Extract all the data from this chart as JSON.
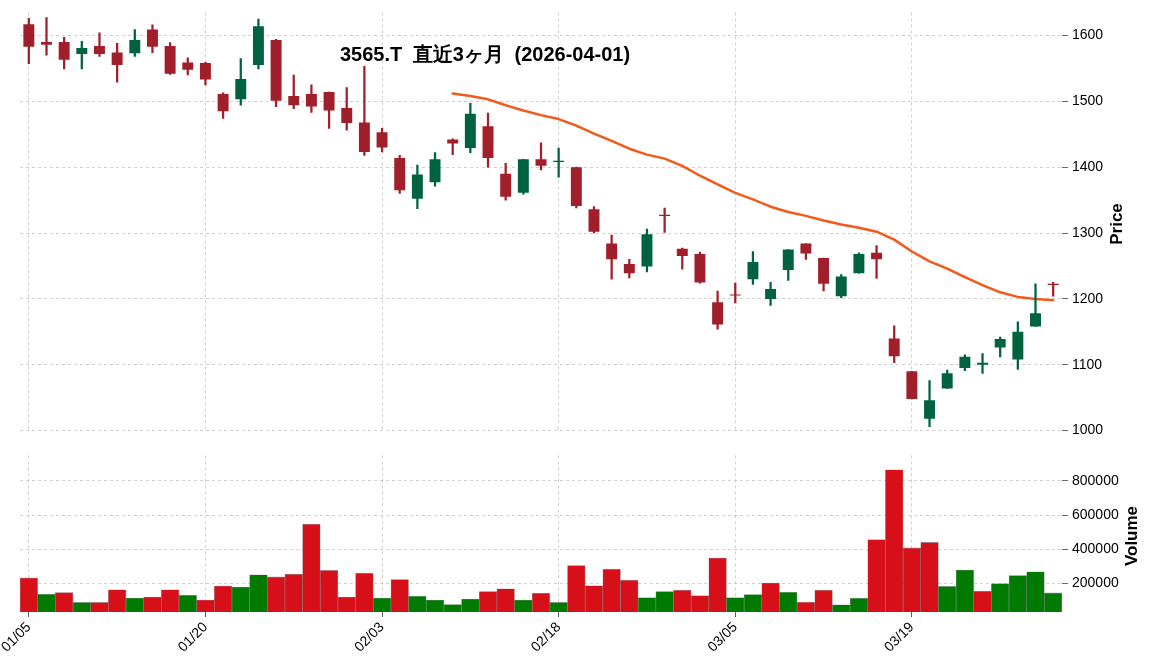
{
  "chart_data": [
    {
      "type": "candlestick",
      "title": "3565.T 直近3ヶ月 (2026-04-01)",
      "ylabel": "Price",
      "categories": [
        null,
        null,
        null,
        null,
        null,
        null,
        null,
        null,
        null,
        null,
        null,
        null,
        null,
        null,
        null,
        null,
        null,
        null,
        null,
        null,
        null,
        null,
        null,
        null,
        null,
        null,
        null,
        null,
        null,
        null,
        null,
        null,
        null,
        null,
        null,
        null,
        null,
        null,
        null,
        null,
        null,
        null,
        null,
        null,
        null,
        null,
        null,
        null,
        null,
        null,
        null,
        null,
        null,
        null,
        null,
        null,
        null,
        null,
        null
      ],
      "ylim": [
        1000,
        1635
      ],
      "yticks": [
        1000,
        1100,
        1200,
        1300,
        1400,
        1500,
        1600
      ],
      "grid": true,
      "tick_labels": "y",
      "series": [
        {
          "ohlc": [
            [
              1617,
              1626,
              1557,
              1583
            ],
            [
              1590,
              1627,
              1570,
              1586
            ],
            [
              1590,
              1597,
              1549,
              1563
            ],
            [
              1572,
              1591,
              1549,
              1581
            ],
            [
              1584,
              1604,
              1568,
              1572
            ],
            [
              1574,
              1588,
              1529,
              1555
            ],
            [
              1573,
              1609,
              1568,
              1593
            ],
            [
              1609,
              1616,
              1574,
              1583
            ],
            [
              1584,
              1589,
              1541,
              1542
            ],
            [
              1559,
              1566,
              1540,
              1548
            ],
            [
              1558,
              1559,
              1525,
              1533
            ],
            [
              1511,
              1513,
              1474,
              1485
            ],
            [
              1503,
              1565,
              1494,
              1534
            ],
            [
              1555,
              1625,
              1549,
              1614
            ],
            [
              1593,
              1594,
              1492,
              1501
            ],
            [
              1508,
              1540,
              1489,
              1494
            ],
            [
              1511,
              1525,
              1483,
              1492
            ],
            [
              1514,
              1514,
              1459,
              1486
            ],
            [
              1490,
              1521,
              1456,
              1467
            ],
            [
              1468,
              1553,
              1418,
              1423
            ],
            [
              1453,
              1459,
              1423,
              1430
            ],
            [
              1414,
              1418,
              1360,
              1365
            ],
            [
              1352,
              1403,
              1337,
              1389
            ],
            [
              1377,
              1422,
              1371,
              1412
            ],
            [
              1442,
              1443,
              1419,
              1436
            ],
            [
              1429,
              1497,
              1422,
              1481
            ],
            [
              1462,
              1482,
              1400,
              1414
            ],
            [
              1390,
              1406,
              1350,
              1355
            ],
            [
              1361,
              1412,
              1359,
              1412
            ],
            [
              1412,
              1437,
              1396,
              1402
            ],
            [
              1408,
              1429,
              1385,
              1409
            ],
            [
              1400,
              1400,
              1338,
              1341
            ],
            [
              1336,
              1340,
              1300,
              1302
            ],
            [
              1284,
              1297,
              1230,
              1260
            ],
            [
              1253,
              1260,
              1232,
              1239
            ],
            [
              1249,
              1306,
              1241,
              1298
            ],
            [
              1327,
              1338,
              1301,
              1326
            ],
            [
              1276,
              1277,
              1245,
              1265
            ],
            [
              1268,
              1271,
              1224,
              1225
            ],
            [
              1195,
              1212,
              1154,
              1161
            ],
            [
              1206,
              1224,
              1194,
              1205
            ],
            [
              1230,
              1272,
              1222,
              1256
            ],
            [
              1200,
              1225,
              1190,
              1215
            ],
            [
              1244,
              1275,
              1228,
              1275
            ],
            [
              1284,
              1284,
              1260,
              1269
            ],
            [
              1262,
              1262,
              1212,
              1223
            ],
            [
              1204,
              1237,
              1202,
              1234
            ],
            [
              1239,
              1270,
              1239,
              1268
            ],
            [
              1270,
              1281,
              1231,
              1260
            ],
            [
              1140,
              1159,
              1103,
              1113
            ],
            [
              1090,
              1090,
              1048,
              1048
            ],
            [
              1018,
              1076,
              1006,
              1046
            ],
            [
              1064,
              1092,
              1064,
              1087
            ],
            [
              1095,
              1115,
              1091,
              1112
            ],
            [
              1100,
              1117,
              1087,
              1103
            ],
            [
              1126,
              1142,
              1112,
              1139
            ],
            [
              1108,
              1165,
              1093,
              1150
            ],
            [
              1158,
              1223,
              1158,
              1178
            ],
            [
              1222,
              1225,
              1204,
              1221
            ]
          ],
          "colors": [
            "#a11f2a",
            "#a11f2a",
            "#a11f2a",
            "#006340",
            "#a11f2a",
            "#a11f2a",
            "#006340",
            "#a11f2a",
            "#a11f2a",
            "#a11f2a",
            "#a11f2a",
            "#a11f2a",
            "#006340",
            "#006340",
            "#a11f2a",
            "#a11f2a",
            "#a11f2a",
            "#a11f2a",
            "#a11f2a",
            "#a11f2a",
            "#a11f2a",
            "#a11f2a",
            "#006340",
            "#006340",
            "#a11f2a",
            "#006340",
            "#a11f2a",
            "#a11f2a",
            "#006340",
            "#a11f2a",
            "#006340",
            "#a11f2a",
            "#a11f2a",
            "#a11f2a",
            "#a11f2a",
            "#006340",
            "#a11f2a",
            "#a11f2a",
            "#a11f2a",
            "#a11f2a",
            "#a11f2a",
            "#006340",
            "#006340",
            "#006340",
            "#a11f2a",
            "#a11f2a",
            "#006340",
            "#006340",
            "#a11f2a",
            "#a11f2a",
            "#a11f2a",
            "#006340",
            "#006340",
            "#006340",
            "#006340",
            "#006340",
            "#006340",
            "#006340",
            "#a11f2a"
          ]
        },
        {
          "type": "line",
          "color": "#f2591a",
          "values": [
            null,
            null,
            null,
            null,
            null,
            null,
            null,
            null,
            null,
            null,
            null,
            null,
            null,
            null,
            null,
            null,
            null,
            null,
            null,
            null,
            null,
            null,
            null,
            null,
            1512,
            1508,
            1503,
            1494,
            1486,
            1479,
            1473,
            1463,
            1451,
            1440,
            1428,
            1419,
            1413,
            1402,
            1387,
            1374,
            1361,
            1351,
            1340,
            1332,
            1326,
            1319,
            1313,
            1308,
            1302,
            1290,
            1272,
            1257,
            1246,
            1233,
            1221,
            1210,
            1203,
            1200,
            1198
          ]
        }
      ]
    },
    {
      "type": "bar",
      "ylabel": "Volume",
      "categories": [
        "01/05",
        null,
        null,
        null,
        null,
        null,
        null,
        null,
        null,
        null,
        "01/20",
        null,
        null,
        null,
        null,
        null,
        null,
        null,
        null,
        null,
        "02/03",
        null,
        null,
        null,
        null,
        null,
        null,
        null,
        null,
        null,
        "02/18",
        null,
        null,
        null,
        null,
        null,
        null,
        null,
        null,
        null,
        "03/05",
        null,
        null,
        null,
        null,
        null,
        null,
        null,
        null,
        null,
        "03/19",
        null,
        null,
        null,
        null,
        null,
        null,
        null,
        null
      ],
      "values": [
        232000,
        136000,
        146000,
        88000,
        88000,
        162000,
        114000,
        120000,
        162000,
        130000,
        102000,
        184000,
        178000,
        250000,
        238000,
        254000,
        546000,
        276000,
        120000,
        260000,
        114000,
        222000,
        124000,
        102000,
        76000,
        108000,
        152000,
        168000,
        102000,
        142000,
        88000,
        304000,
        186000,
        282000,
        218000,
        116000,
        152000,
        160000,
        128000,
        348000,
        116000,
        134000,
        202000,
        148000,
        90000,
        160000,
        74000,
        112000,
        456000,
        866000,
        408000,
        440000,
        182000,
        278000,
        154000,
        198000,
        246000,
        268000,
        144000
      ],
      "colors": [
        "#d60f19",
        "#007a00",
        "#d60f19",
        "#007a00",
        "#d60f19",
        "#d60f19",
        "#007a00",
        "#d60f19",
        "#d60f19",
        "#007a00",
        "#d60f19",
        "#d60f19",
        "#007a00",
        "#007a00",
        "#d60f19",
        "#d60f19",
        "#d60f19",
        "#d60f19",
        "#d60f19",
        "#d60f19",
        "#007a00",
        "#d60f19",
        "#007a00",
        "#007a00",
        "#007a00",
        "#007a00",
        "#d60f19",
        "#d60f19",
        "#007a00",
        "#d60f19",
        "#007a00",
        "#d60f19",
        "#d60f19",
        "#d60f19",
        "#d60f19",
        "#007a00",
        "#007a00",
        "#d60f19",
        "#d60f19",
        "#d60f19",
        "#007a00",
        "#007a00",
        "#d60f19",
        "#007a00",
        "#d60f19",
        "#d60f19",
        "#007a00",
        "#007a00",
        "#d60f19",
        "#d60f19",
        "#d60f19",
        "#d60f19",
        "#007a00",
        "#007a00",
        "#d60f19",
        "#007a00",
        "#007a00",
        "#007a00",
        "#007a00"
      ],
      "ylim": [
        32000,
        950000
      ],
      "yticks": [
        200000,
        400000,
        600000,
        800000
      ],
      "grid": true
    }
  ]
}
